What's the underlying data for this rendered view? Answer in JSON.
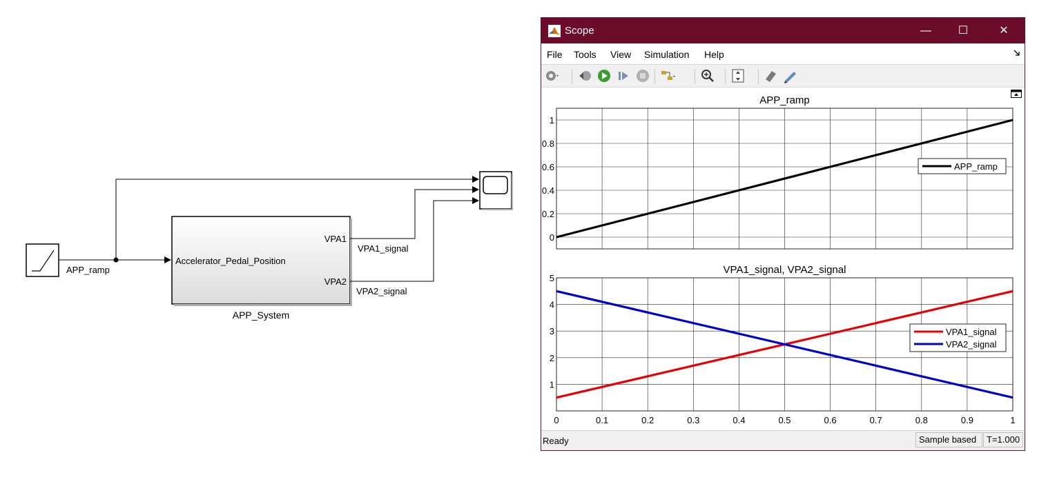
{
  "diagram": {
    "ramp_signal_label": "APP_ramp",
    "subsystem": {
      "name": "APP_System",
      "input_port": "Accelerator_Pedal_Position",
      "output_ports": [
        "VPA1",
        "VPA2"
      ]
    },
    "vpa1_signal_label": "VPA1_signal",
    "vpa2_signal_label": "VPA2_signal"
  },
  "scope": {
    "title": "Scope",
    "window_controls": {
      "minimize": "—",
      "maximize": "☐",
      "close": "✕"
    },
    "menu": [
      "File",
      "Tools",
      "View",
      "Simulation",
      "Help"
    ],
    "toolbar_icons": [
      "settings-icon",
      "step-back-icon",
      "run-icon",
      "step-forward-icon",
      "stop-icon",
      "signal-selector-icon",
      "zoom-icon",
      "scale-axes-icon",
      "highlight-icon",
      "measurement-icon"
    ],
    "colors": {
      "titlebar": "#6b0c2a",
      "ramp": "#000000",
      "vpa1": "#e60000",
      "vpa2": "#0000cc"
    },
    "status": {
      "left": "Ready",
      "mode": "Sample based",
      "time": "T=1.000"
    }
  },
  "chart_data": [
    {
      "type": "line",
      "title": "APP_ramp",
      "xlim": [
        0,
        1
      ],
      "ylim": [
        -0.1,
        1.1
      ],
      "yticks": [
        0,
        0.2,
        0.4,
        0.6,
        0.8,
        1
      ],
      "xticks": [
        0,
        0.1,
        0.2,
        0.3,
        0.4,
        0.5,
        0.6,
        0.7,
        0.8,
        0.9,
        1
      ],
      "grid": true,
      "legend": "right",
      "series": [
        {
          "name": "APP_ramp",
          "color": "#000000",
          "x": [
            0,
            1
          ],
          "y": [
            0,
            1
          ]
        }
      ]
    },
    {
      "type": "line",
      "title": "VPA1_signal, VPA2_signal",
      "xlim": [
        0,
        1
      ],
      "ylim": [
        0,
        5
      ],
      "yticks": [
        1,
        2,
        3,
        4,
        5
      ],
      "xticks": [
        0,
        0.1,
        0.2,
        0.3,
        0.4,
        0.5,
        0.6,
        0.7,
        0.8,
        0.9,
        1
      ],
      "xtick_labels": [
        "0",
        "0.1",
        "0.2",
        "0.3",
        "0.4",
        "0.5",
        "0.6",
        "0.7",
        "0.8",
        "0.9",
        "1"
      ],
      "grid": true,
      "legend": "right",
      "series": [
        {
          "name": "VPA1_signal",
          "color": "#e60000",
          "x": [
            0,
            1
          ],
          "y": [
            0.5,
            4.5
          ]
        },
        {
          "name": "VPA2_signal",
          "color": "#0000cc",
          "x": [
            0,
            1
          ],
          "y": [
            4.5,
            0.5
          ]
        }
      ]
    }
  ]
}
